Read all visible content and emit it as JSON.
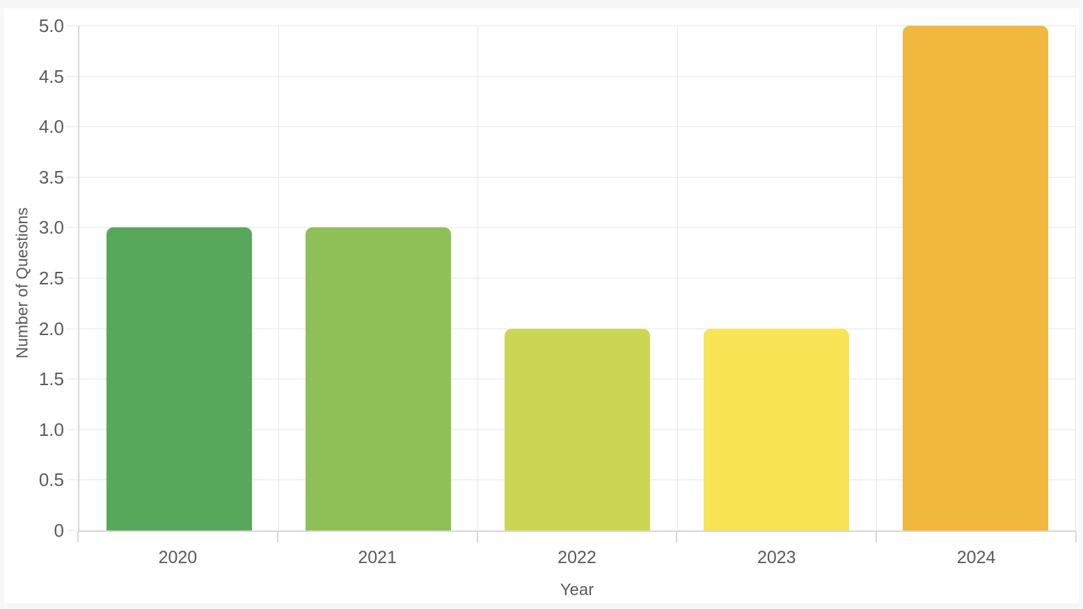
{
  "page": {
    "background": "#f7f7f8",
    "card_background": "#ffffff"
  },
  "chart_data": {
    "type": "bar",
    "title": "",
    "xlabel": "Year",
    "ylabel": "Number of Questions",
    "categories": [
      "2020",
      "2021",
      "2022",
      "2023",
      "2024"
    ],
    "values": [
      3,
      3,
      2,
      2,
      5
    ],
    "bar_colors": [
      "#58a85b",
      "#8fc057",
      "#ccd655",
      "#f8e455",
      "#f0b83d"
    ],
    "ylim": [
      0,
      5
    ],
    "yticks": [
      0,
      0.5,
      1,
      1.5,
      2,
      2.5,
      3,
      3.5,
      4,
      4.5,
      5
    ],
    "ytick_labels": [
      "0",
      "0.5",
      "1.0",
      "1.5",
      "2.0",
      "2.5",
      "3.0",
      "3.5",
      "4.0",
      "4.5",
      "5.0"
    ],
    "grid": "on",
    "legend": "none",
    "grid_color": "#e6e6e6",
    "axis_color": "#d6d6d6",
    "text_color": "#5a5a5c",
    "bar_width_fraction": 0.73
  }
}
